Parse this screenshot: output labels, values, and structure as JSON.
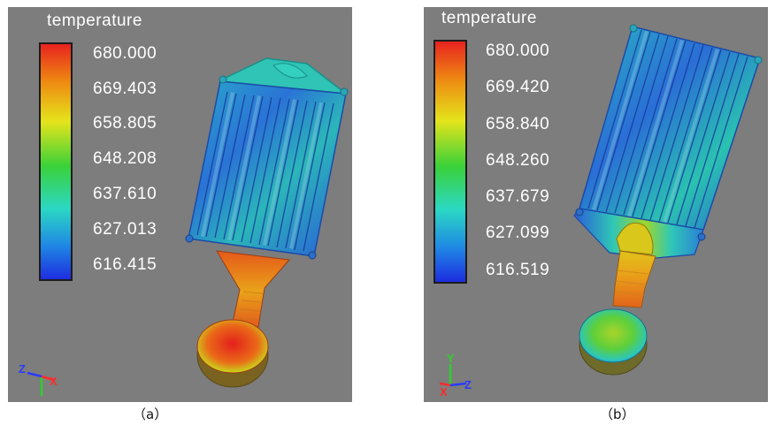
{
  "panels": [
    {
      "id": "a",
      "legend_title": "temperature",
      "ticks": [
        "680.000",
        "669.403",
        "658.805",
        "648.208",
        "637.610",
        "627.013",
        "616.415"
      ],
      "caption": "（a）",
      "axes": {
        "left": "Z",
        "right": "X"
      }
    },
    {
      "id": "b",
      "legend_title": "temperature",
      "ticks": [
        "680.000",
        "669.420",
        "658.840",
        "648.260",
        "637.679",
        "627.099",
        "616.519"
      ],
      "caption": "（b）",
      "axes": {
        "top": "Y",
        "left": "X",
        "right": "Z"
      }
    }
  ],
  "colors": {
    "panel_bg": "#7d7d7d",
    "hot": "#e8231f",
    "cold": "#1e2de0"
  }
}
